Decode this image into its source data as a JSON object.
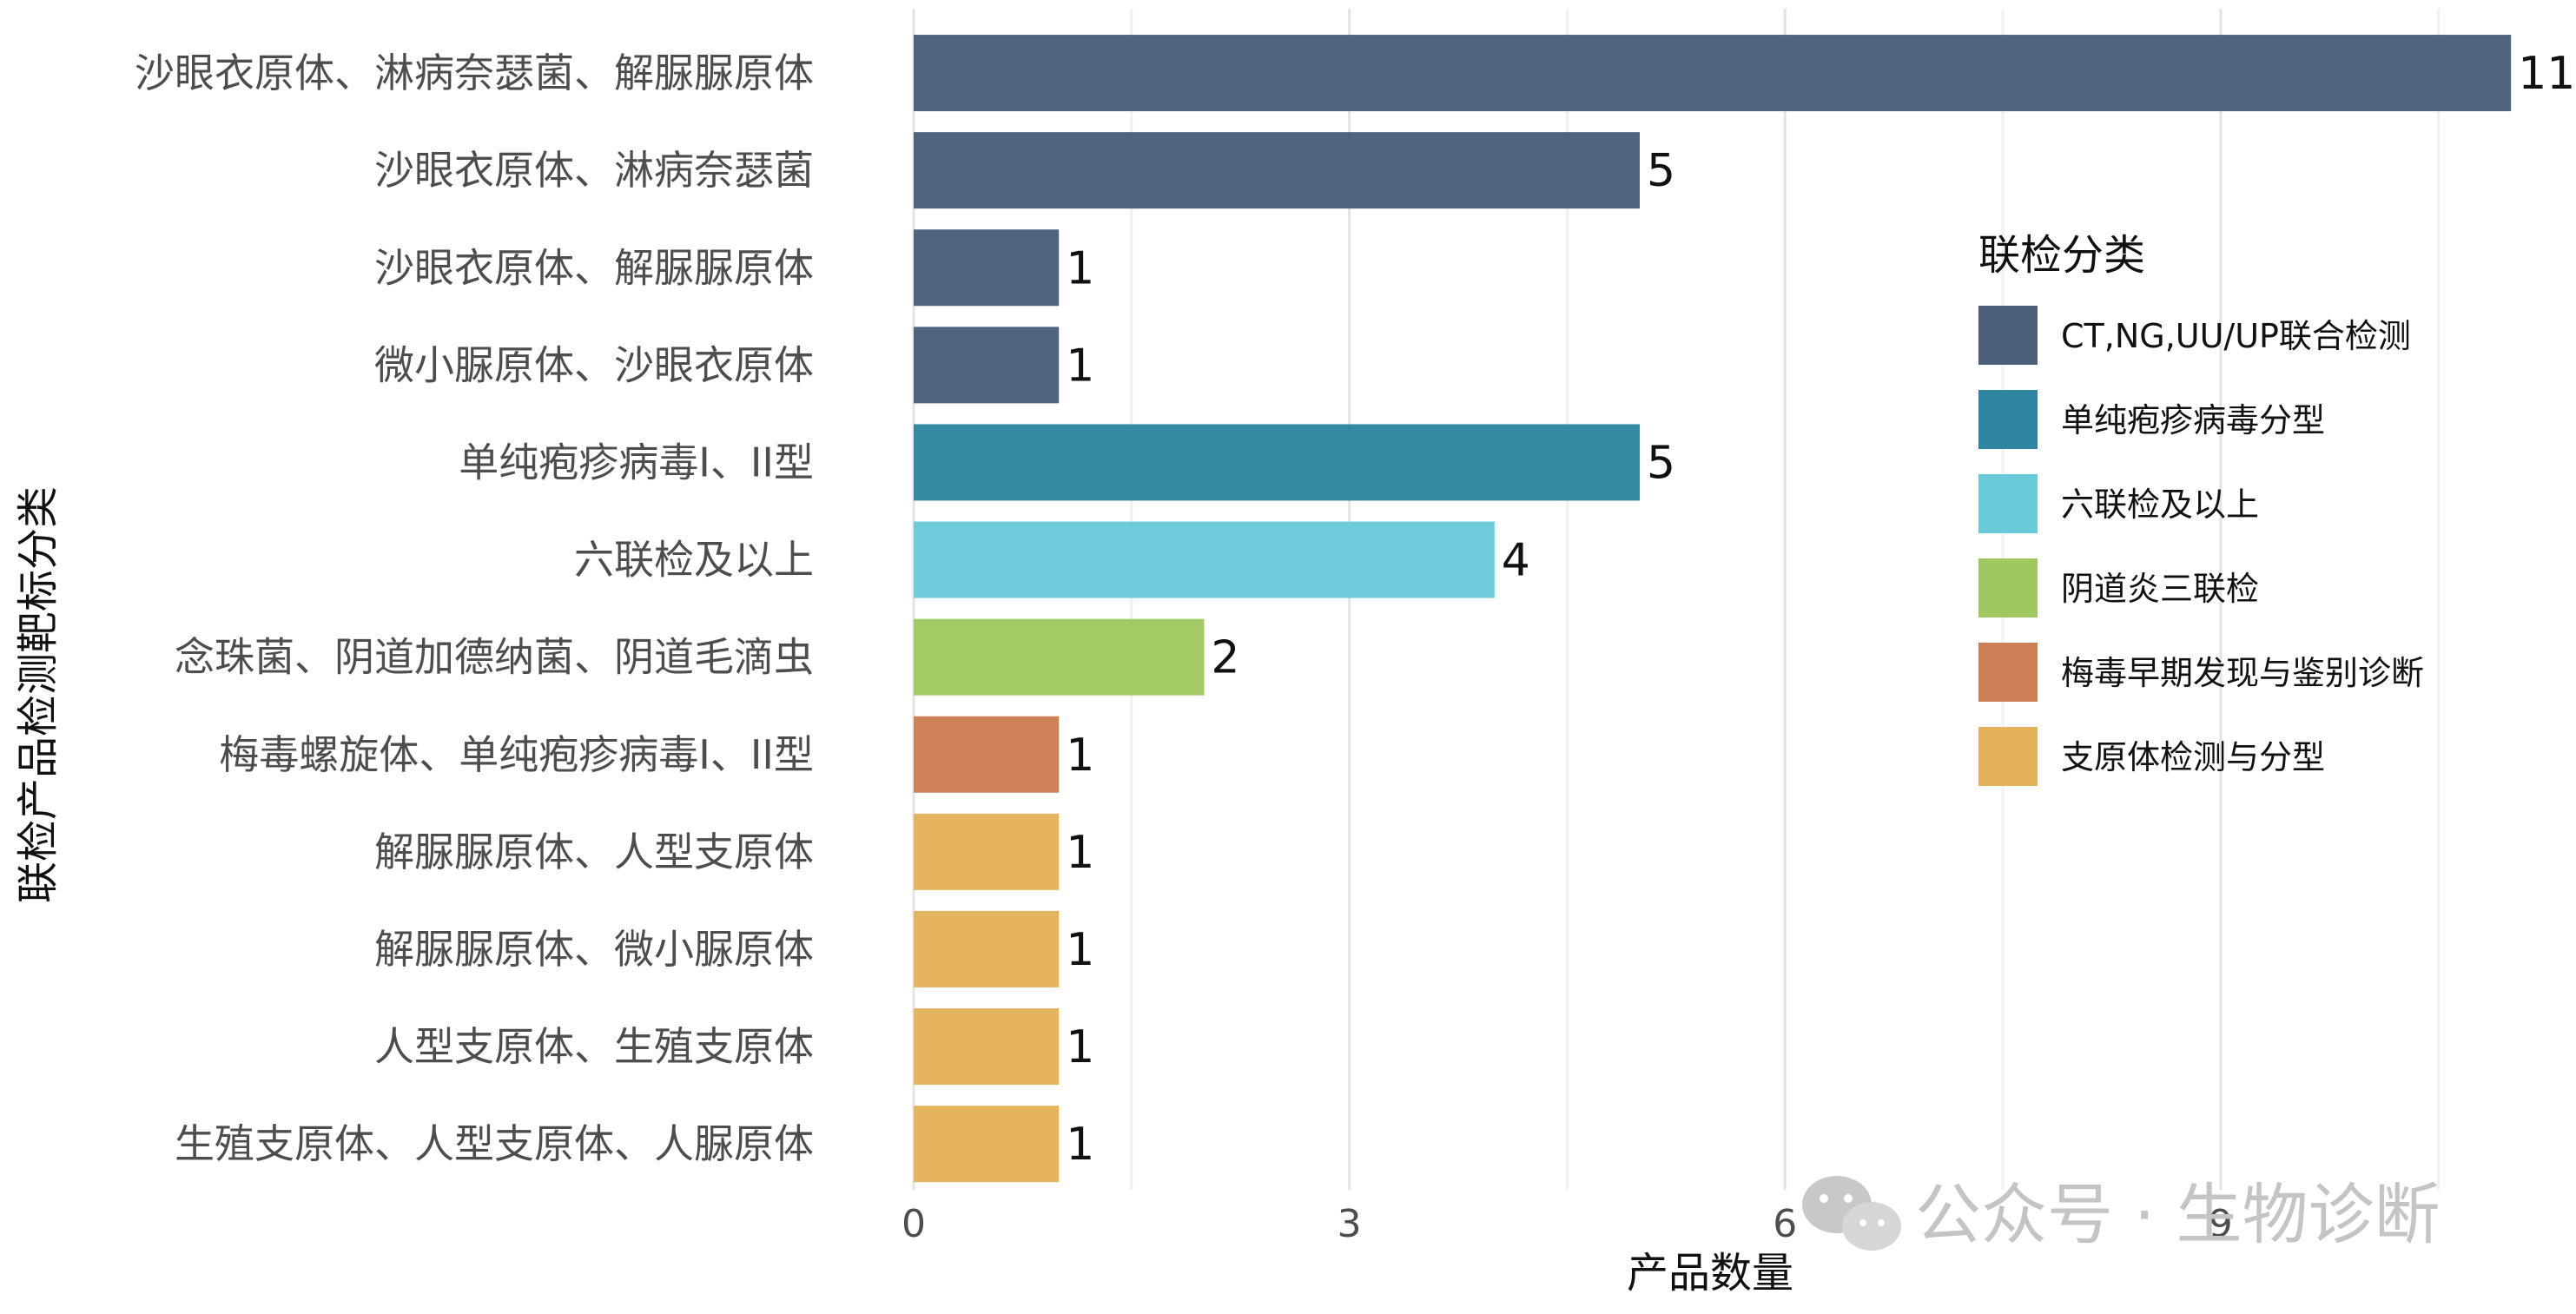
{
  "chart_data": {
    "type": "bar",
    "orientation": "horizontal",
    "title": "",
    "xlabel": "产品数量",
    "ylabel": "联检产品检测靶标分类",
    "xlim": [
      0,
      11.5
    ],
    "xticks": [
      0,
      3,
      6,
      9
    ],
    "grid": "vertical",
    "legend": {
      "title": "联检分类",
      "position": "right",
      "entries": [
        {
          "name": "CT,NG,UU/UP联合检测",
          "color": "#4a5f7a"
        },
        {
          "name": "单纯疱疹病毒分型",
          "color": "#2e86a0"
        },
        {
          "name": "六联检及以上",
          "color": "#69cad9"
        },
        {
          "name": "阴道炎三联检",
          "color": "#9fc860"
        },
        {
          "name": "梅毒早期发现与鉴别诊断",
          "color": "#cd7e55"
        },
        {
          "name": "支原体检测与分型",
          "color": "#e4b25a"
        }
      ]
    },
    "categories": [
      "沙眼衣原体、淋病奈瑟菌、解脲脲原体",
      "沙眼衣原体、淋病奈瑟菌",
      "沙眼衣原体、解脲脲原体",
      "微小脲原体、沙眼衣原体",
      "单纯疱疹病毒I、II型",
      "六联检及以上",
      "念珠菌、阴道加德纳菌、阴道毛滴虫",
      "梅毒螺旋体、单纯疱疹病毒I、II型",
      "解脲脲原体、人型支原体",
      "解脲脲原体、微小脲原体",
      "人型支原体、生殖支原体",
      "生殖支原体、人型支原体、人脲原体"
    ],
    "values": [
      11,
      5,
      1,
      1,
      5,
      4,
      2,
      1,
      1,
      1,
      1,
      1
    ],
    "groups": [
      0,
      0,
      0,
      0,
      1,
      2,
      3,
      4,
      5,
      5,
      5,
      5
    ]
  },
  "watermark": {
    "text": "公众号 · 生物诊断",
    "icon": "wechat-icon",
    "color": "#c4c4c4"
  }
}
